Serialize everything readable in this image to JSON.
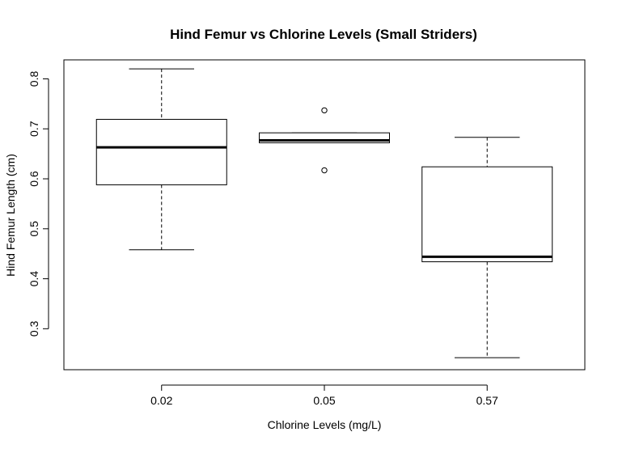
{
  "chart_data": {
    "type": "boxplot",
    "title": "Hind Femur vs Chlorine Levels (Small Striders)",
    "xlabel": "Chlorine Levels (mg/L)",
    "ylabel": "Hind Femur Length (cm)",
    "categories": [
      "0.02",
      "0.05",
      "0.57"
    ],
    "y_ticks": [
      "0.3",
      "0.4",
      "0.5",
      "0.6",
      "0.7",
      "0.8"
    ],
    "ylim": [
      0.218,
      0.838
    ],
    "grid": false,
    "boxes": [
      {
        "category": "0.02",
        "min": 0.458,
        "q1": 0.588,
        "median": 0.663,
        "q3": 0.719,
        "max": 0.82,
        "outliers": []
      },
      {
        "category": "0.05",
        "min": 0.672,
        "q1": 0.672,
        "median": 0.677,
        "q3": 0.692,
        "max": 0.692,
        "outliers": [
          0.737,
          0.617
        ]
      },
      {
        "category": "0.57",
        "min": 0.242,
        "q1": 0.434,
        "median": 0.444,
        "q3": 0.624,
        "max": 0.683,
        "outliers": []
      }
    ]
  }
}
